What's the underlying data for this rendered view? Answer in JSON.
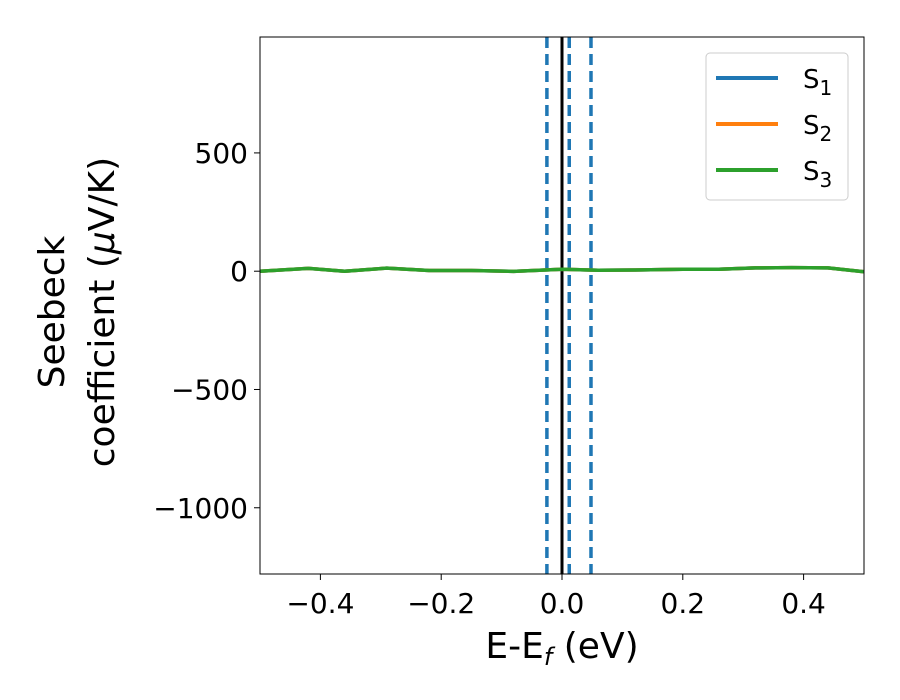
{
  "chart_data": {
    "type": "line",
    "xlabel": {
      "text": "E-E",
      "sub": "f",
      "tail": " (eV)"
    },
    "ylabel": {
      "line1": "Seebeck",
      "line2_prefix": "coefficient  (",
      "mu": "μ",
      "line2_suffix": "V/K)"
    },
    "xlim": [
      -0.5,
      0.5
    ],
    "ylim": [
      -1280,
      990
    ],
    "xticks": [
      {
        "value": -0.4,
        "label": "−0.4"
      },
      {
        "value": -0.2,
        "label": "−0.2"
      },
      {
        "value": 0.0,
        "label": "0.0"
      },
      {
        "value": 0.2,
        "label": "0.2"
      },
      {
        "value": 0.4,
        "label": "0.4"
      }
    ],
    "yticks": [
      {
        "value": 500,
        "label": "500"
      },
      {
        "value": 0,
        "label": "0"
      },
      {
        "value": -500,
        "label": "−500"
      },
      {
        "value": -1000,
        "label": "−1000"
      }
    ],
    "grid": false,
    "legend_position": "top-right",
    "series": [
      {
        "name": "S",
        "sub": "1",
        "color": "#1f77b4",
        "x": [
          -0.5,
          -0.42,
          -0.36,
          -0.29,
          -0.22,
          -0.15,
          -0.08,
          0.0,
          0.06,
          0.12,
          0.2,
          0.26,
          0.32,
          0.38,
          0.44,
          0.5
        ],
        "y": [
          0,
          12,
          0,
          13,
          3,
          3,
          -1,
          8,
          4,
          5,
          8,
          8,
          14,
          15,
          14,
          -2
        ]
      },
      {
        "name": "S",
        "sub": "2",
        "color": "#ff7f0e",
        "x": [
          -0.5,
          -0.42,
          -0.36,
          -0.29,
          -0.22,
          -0.15,
          -0.08,
          0.0,
          0.06,
          0.12,
          0.2,
          0.26,
          0.32,
          0.38,
          0.44,
          0.5
        ],
        "y": [
          0,
          12,
          0,
          13,
          3,
          3,
          -1,
          8,
          4,
          5,
          8,
          8,
          14,
          15,
          14,
          -2
        ]
      },
      {
        "name": "S",
        "sub": "3",
        "color": "#2ca02c",
        "x": [
          -0.5,
          -0.42,
          -0.36,
          -0.29,
          -0.22,
          -0.15,
          -0.08,
          0.0,
          0.06,
          0.12,
          0.2,
          0.26,
          0.32,
          0.38,
          0.44,
          0.5
        ],
        "y": [
          0,
          12,
          0,
          13,
          3,
          3,
          -1,
          8,
          4,
          5,
          8,
          8,
          14,
          15,
          14,
          -2
        ]
      }
    ],
    "vlines": [
      {
        "x": -0.025,
        "style": "dashed",
        "color": "#1f77b4"
      },
      {
        "x": 0.012,
        "style": "dashed",
        "color": "#1f77b4"
      },
      {
        "x": 0.048,
        "style": "dashed",
        "color": "#1f77b4"
      },
      {
        "x": 0.0,
        "style": "solid",
        "color": "#000000"
      }
    ]
  }
}
